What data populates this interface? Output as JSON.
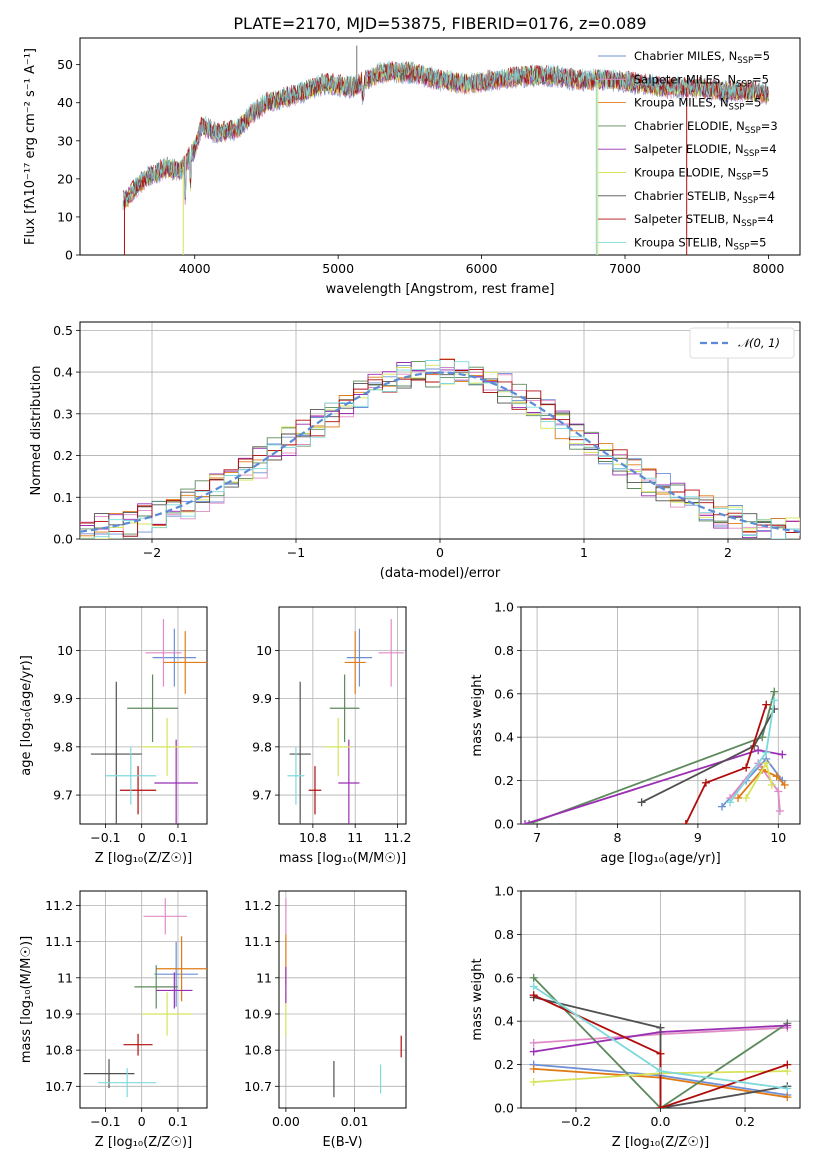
{
  "title": "PLATE=2170, MJD=53875, FIBERID=0176, z=0.089",
  "series_colors": [
    "#6d8fd6",
    "#e08bc6",
    "#e07b16",
    "#5d8a5d",
    "#9a2fb3",
    "#d6e35a",
    "#505050",
    "#b00c0c",
    "#7fd9db"
  ],
  "legend": {
    "models": [
      {
        "pre": "Chabrier MILES, N",
        "sub": "SSP",
        "post": "=5"
      },
      {
        "pre": "Salpeter MILES, N",
        "sub": "SSP",
        "post": "=5"
      },
      {
        "pre": "Kroupa MILES, N",
        "sub": "SSP",
        "post": "=5"
      },
      {
        "pre": "Chabrier ELODIE, N",
        "sub": "SSP",
        "post": "=3"
      },
      {
        "pre": "Salpeter ELODIE, N",
        "sub": "SSP",
        "post": "=4"
      },
      {
        "pre": "Kroupa ELODIE, N",
        "sub": "SSP",
        "post": "=5"
      },
      {
        "pre": "Chabrier STELIB, N",
        "sub": "SSP",
        "post": "=4"
      },
      {
        "pre": "Salpeter STELIB, N",
        "sub": "SSP",
        "post": "=4"
      },
      {
        "pre": "Kroupa STELIB, N",
        "sub": "SSP",
        "post": "=5"
      }
    ],
    "normal": "𝒩(0, 1)"
  },
  "chart_data": [
    {
      "type": "line",
      "id": "spectrum",
      "xlabel": "wavelength [Angstrom, rest frame]",
      "ylabel": "Flux [fλ10⁻¹⁷ erg cm⁻² s⁻¹ A⁻¹]",
      "xlim": [
        3200,
        8220
      ],
      "ylim": [
        0,
        57
      ],
      "xticks": [
        4000,
        5000,
        6000,
        7000,
        8000
      ],
      "yticks": [
        0,
        10,
        20,
        30,
        40,
        50
      ],
      "continuum": [
        [
          3500,
          14
        ],
        [
          3650,
          20
        ],
        [
          3800,
          23
        ],
        [
          3900,
          22
        ],
        [
          4000,
          28
        ],
        [
          4050,
          34
        ],
        [
          4150,
          32
        ],
        [
          4300,
          33
        ],
        [
          4400,
          37
        ],
        [
          4500,
          40
        ],
        [
          4700,
          42
        ],
        [
          4900,
          45
        ],
        [
          5100,
          44
        ],
        [
          5300,
          48
        ],
        [
          5500,
          48
        ],
        [
          5700,
          46
        ],
        [
          5900,
          45
        ],
        [
          6100,
          46
        ],
        [
          6300,
          47
        ],
        [
          6500,
          47
        ],
        [
          6700,
          46
        ],
        [
          6900,
          46
        ],
        [
          7100,
          45
        ],
        [
          7300,
          44
        ],
        [
          7500,
          44
        ],
        [
          7700,
          43
        ],
        [
          7900,
          43
        ],
        [
          8000,
          42
        ]
      ],
      "x_start": 3500,
      "x_end": 8000
    },
    {
      "type": "histogram",
      "id": "residuals",
      "xlabel": "(data-model)/error",
      "ylabel": "Normed distribution",
      "xlim": [
        -2.5,
        2.5
      ],
      "ylim": [
        0,
        0.52
      ],
      "xticks": [
        -2,
        -1,
        0,
        1,
        2
      ],
      "yticks": [
        0,
        0.1,
        0.2,
        0.3,
        0.4,
        0.5
      ],
      "bin_width": 0.1
    },
    {
      "type": "scatter",
      "id": "age-vs-Z",
      "xlabel": "Z [log₁₀(Z/Z☉)]",
      "ylabel": "age  [log₁₀(age/yr)]",
      "xlim": [
        -0.17,
        0.18
      ],
      "ylim": [
        9.64,
        10.09
      ],
      "xticks": [
        -0.1,
        0.0,
        0.1
      ],
      "yticks": [
        9.7,
        9.8,
        9.9,
        10.0
      ],
      "points": [
        {
          "x": 0.09,
          "y": 9.985,
          "ex": 0.06,
          "ey": 0.06,
          "s": 0
        },
        {
          "x": 0.06,
          "y": 9.995,
          "ex": 0.05,
          "ey": 0.07,
          "s": 1
        },
        {
          "x": 0.12,
          "y": 9.975,
          "ex": 0.06,
          "ey": 0.065,
          "s": 2
        },
        {
          "x": 0.03,
          "y": 9.88,
          "ex": 0.07,
          "ey": 0.07,
          "s": 3
        },
        {
          "x": 0.095,
          "y": 9.725,
          "ex": 0.06,
          "ey": 0.09,
          "s": 4
        },
        {
          "x": 0.07,
          "y": 9.8,
          "ex": 0.07,
          "ey": 0.06,
          "s": 5
        },
        {
          "x": -0.07,
          "y": 9.785,
          "ex": 0.07,
          "ey": 0.15,
          "s": 6
        },
        {
          "x": -0.01,
          "y": 9.71,
          "ex": 0.05,
          "ey": 0.05,
          "s": 7
        },
        {
          "x": -0.03,
          "y": 9.74,
          "ex": 0.07,
          "ey": 0.06,
          "s": 8
        }
      ]
    },
    {
      "type": "scatter",
      "id": "age-vs-mass",
      "xlabel": "mass [log₁₀(M/M☉)]",
      "ylabel": "",
      "xlim": [
        10.64,
        11.24
      ],
      "ylim": [
        9.64,
        10.09
      ],
      "xticks": [
        10.8,
        11.0,
        11.2
      ],
      "yticks": [
        9.7,
        9.8,
        9.9,
        10.0
      ],
      "points": [
        {
          "x": 11.02,
          "y": 9.985,
          "ex": 0.06,
          "ey": 0.06,
          "s": 0
        },
        {
          "x": 11.17,
          "y": 9.995,
          "ex": 0.06,
          "ey": 0.07,
          "s": 1
        },
        {
          "x": 11.0,
          "y": 9.975,
          "ex": 0.05,
          "ey": 0.065,
          "s": 2
        },
        {
          "x": 10.95,
          "y": 9.88,
          "ex": 0.07,
          "ey": 0.07,
          "s": 3
        },
        {
          "x": 10.97,
          "y": 9.725,
          "ex": 0.05,
          "ey": 0.09,
          "s": 4
        },
        {
          "x": 10.92,
          "y": 9.8,
          "ex": 0.06,
          "ey": 0.06,
          "s": 5
        },
        {
          "x": 10.74,
          "y": 9.785,
          "ex": 0.05,
          "ey": 0.15,
          "s": 6
        },
        {
          "x": 10.81,
          "y": 9.71,
          "ex": 0.03,
          "ey": 0.05,
          "s": 7
        },
        {
          "x": 10.72,
          "y": 9.74,
          "ex": 0.04,
          "ey": 0.06,
          "s": 8
        }
      ]
    },
    {
      "type": "line",
      "id": "weight-vs-age",
      "xlabel": "age  [log₁₀(age/yr)]",
      "ylabel": "mass weight",
      "xlim": [
        6.8,
        10.27
      ],
      "ylim": [
        0,
        1
      ],
      "xticks": [
        7,
        8,
        9,
        10
      ],
      "yticks": [
        0,
        0.2,
        0.4,
        0.6,
        0.8,
        1.0
      ],
      "series": [
        {
          "s": 0,
          "points": [
            [
              9.3,
              0.08
            ],
            [
              9.6,
              0.2
            ],
            [
              9.85,
              0.3
            ],
            [
              10.05,
              0.2
            ]
          ]
        },
        {
          "s": 1,
          "points": [
            [
              9.4,
              0.12
            ],
            [
              9.75,
              0.28
            ],
            [
              10.0,
              0.15
            ],
            [
              10.02,
              0.06
            ]
          ]
        },
        {
          "s": 2,
          "points": [
            [
              9.5,
              0.12
            ],
            [
              9.8,
              0.25
            ],
            [
              9.98,
              0.22
            ],
            [
              10.08,
              0.18
            ]
          ]
        },
        {
          "s": 3,
          "points": [
            [
              6.9,
              0.0
            ],
            [
              9.8,
              0.4
            ],
            [
              9.95,
              0.61
            ]
          ]
        },
        {
          "s": 4,
          "points": [
            [
              6.85,
              0.0
            ],
            [
              9.75,
              0.34
            ],
            [
              10.05,
              0.32
            ]
          ]
        },
        {
          "s": 5,
          "points": [
            [
              9.6,
              0.12
            ],
            [
              9.85,
              0.28
            ],
            [
              9.92,
              0.18
            ]
          ]
        },
        {
          "s": 6,
          "points": [
            [
              8.3,
              0.1
            ],
            [
              9.7,
              0.36
            ],
            [
              9.95,
              0.53
            ]
          ]
        },
        {
          "s": 7,
          "points": [
            [
              8.85,
              0.0
            ],
            [
              9.1,
              0.19
            ],
            [
              9.6,
              0.26
            ],
            [
              9.85,
              0.55
            ]
          ]
        },
        {
          "s": 8,
          "points": [
            [
              9.4,
              0.1
            ],
            [
              9.85,
              0.33
            ],
            [
              9.95,
              0.57
            ]
          ]
        }
      ]
    },
    {
      "type": "scatter",
      "id": "mass-vs-Z",
      "xlabel": "Z [log₁₀(Z/Z☉)]",
      "ylabel": "mass [log₁₀(M/M☉)]",
      "xlim": [
        -0.17,
        0.18
      ],
      "ylim": [
        10.64,
        11.24
      ],
      "xticks": [
        -0.1,
        0.0,
        0.1
      ],
      "yticks": [
        10.7,
        10.8,
        10.9,
        11.0,
        11.1,
        11.2
      ],
      "points": [
        {
          "x": 0.095,
          "y": 11.01,
          "ex": 0.06,
          "ey": 0.09,
          "s": 0
        },
        {
          "x": 0.065,
          "y": 11.17,
          "ex": 0.06,
          "ey": 0.05,
          "s": 1
        },
        {
          "x": 0.11,
          "y": 11.025,
          "ex": 0.07,
          "ey": 0.09,
          "s": 2
        },
        {
          "x": 0.04,
          "y": 10.975,
          "ex": 0.06,
          "ey": 0.06,
          "s": 3
        },
        {
          "x": 0.09,
          "y": 10.965,
          "ex": 0.05,
          "ey": 0.05,
          "s": 4
        },
        {
          "x": 0.07,
          "y": 10.9,
          "ex": 0.07,
          "ey": 0.06,
          "s": 5
        },
        {
          "x": -0.09,
          "y": 10.735,
          "ex": 0.07,
          "ey": 0.04,
          "s": 6
        },
        {
          "x": -0.01,
          "y": 10.815,
          "ex": 0.04,
          "ey": 0.03,
          "s": 7
        },
        {
          "x": -0.04,
          "y": 10.71,
          "ex": 0.08,
          "ey": 0.04,
          "s": 8
        }
      ]
    },
    {
      "type": "scatter",
      "id": "mass-vs-ebv",
      "xlabel": "E(B-V)",
      "ylabel": "",
      "xlim": [
        -0.001,
        0.0175
      ],
      "ylim": [
        10.64,
        11.24
      ],
      "xticks": [
        0.0,
        0.01
      ],
      "yticks": [
        10.7,
        10.8,
        10.9,
        11.0,
        11.1,
        11.2
      ],
      "xticklabels": [
        "0.00",
        "0.01"
      ],
      "points": [
        {
          "x": 0.0,
          "y": 11.17,
          "ex": 0,
          "ey": 0.05,
          "s": 1
        },
        {
          "x": 0.0,
          "y": 11.05,
          "ex": 0,
          "ey": 0.07,
          "s": 2
        },
        {
          "x": 0.0,
          "y": 10.9,
          "ex": 0,
          "ey": 0.06,
          "s": 5
        },
        {
          "x": 0.0,
          "y": 10.98,
          "ex": 0,
          "ey": 0.05,
          "s": 4
        },
        {
          "x": 0.007,
          "y": 10.72,
          "ex": 0,
          "ey": 0.05,
          "s": 6
        },
        {
          "x": 0.0168,
          "y": 10.81,
          "ex": 0,
          "ey": 0.03,
          "s": 7
        },
        {
          "x": 0.0138,
          "y": 10.72,
          "ex": 0,
          "ey": 0.04,
          "s": 8
        }
      ]
    },
    {
      "type": "line",
      "id": "weight-vs-Z",
      "xlabel": "Z [log₁₀(Z/Z☉)]",
      "ylabel": "mass weight",
      "xlim": [
        -0.33,
        0.33
      ],
      "ylim": [
        0,
        1
      ],
      "xticks": [
        -0.2,
        0.0,
        0.2
      ],
      "yticks": [
        0,
        0.2,
        0.4,
        0.6,
        0.8,
        1.0
      ],
      "xticklabels": [
        "−0.2",
        "0.0",
        "0.2"
      ],
      "series": [
        {
          "s": 0,
          "points": [
            [
              -0.3,
              0.2
            ],
            [
              0.0,
              0.15
            ],
            [
              0.3,
              0.06
            ]
          ]
        },
        {
          "s": 1,
          "points": [
            [
              -0.3,
              0.3
            ],
            [
              0.0,
              0.34
            ],
            [
              0.3,
              0.37
            ]
          ]
        },
        {
          "s": 2,
          "points": [
            [
              -0.3,
              0.18
            ],
            [
              0.0,
              0.14
            ],
            [
              0.3,
              0.05
            ]
          ]
        },
        {
          "s": 3,
          "points": [
            [
              -0.3,
              0.6
            ],
            [
              0.0,
              0.0
            ],
            [
              0.3,
              0.39
            ]
          ]
        },
        {
          "s": 4,
          "points": [
            [
              -0.3,
              0.26
            ],
            [
              0.0,
              0.35
            ],
            [
              0.3,
              0.38
            ]
          ]
        },
        {
          "s": 5,
          "points": [
            [
              -0.3,
              0.12
            ],
            [
              0.0,
              0.16
            ],
            [
              0.3,
              0.17
            ]
          ]
        },
        {
          "s": 6,
          "points": [
            [
              -0.3,
              0.51
            ],
            [
              0.0,
              0.37
            ],
            [
              0.0,
              0.0
            ],
            [
              0.3,
              0.1
            ]
          ]
        },
        {
          "s": 7,
          "points": [
            [
              -0.3,
              0.52
            ],
            [
              0.0,
              0.25
            ],
            [
              0.0,
              0.0
            ],
            [
              0.3,
              0.2
            ]
          ]
        },
        {
          "s": 8,
          "points": [
            [
              -0.3,
              0.56
            ],
            [
              0.0,
              0.17
            ],
            [
              0.3,
              0.09
            ]
          ]
        }
      ]
    }
  ]
}
